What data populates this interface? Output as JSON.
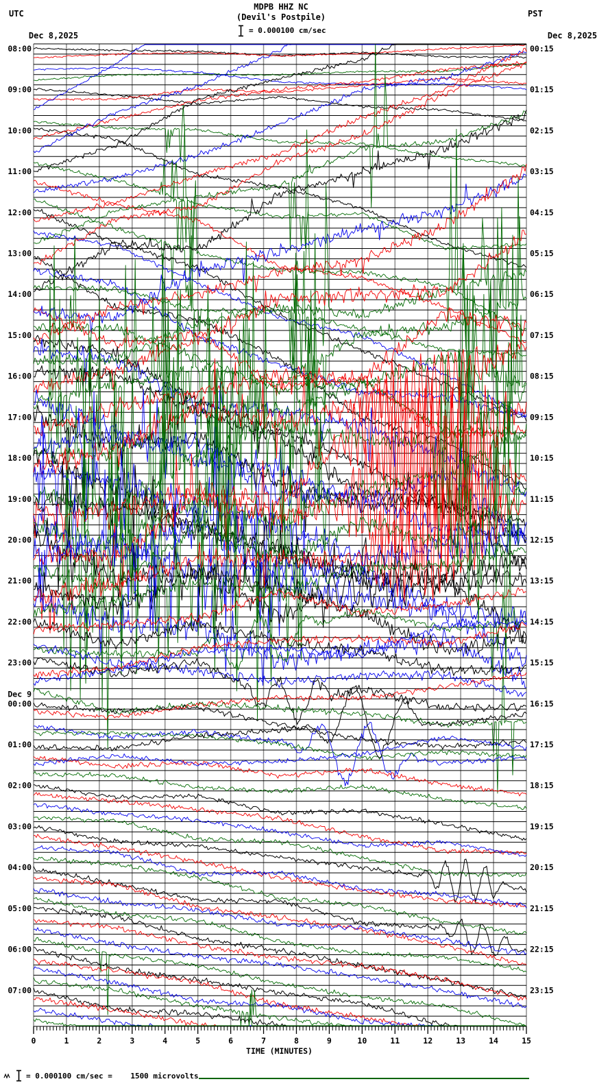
{
  "header": {
    "utc_label": "UTC",
    "utc_date": "Dec 8,2025",
    "pst_label": "PST",
    "pst_date": "Dec 8,2025",
    "station": "MDPB HHZ NC",
    "location": "(Devil's Postpile)",
    "scale_note": "= 0.000100 cm/sec"
  },
  "footer": {
    "note": "= 0.000100 cm/sec =    1500 microvolts"
  },
  "chart_data": {
    "type": "line",
    "subtype": "helicorder-seismogram",
    "title": "MDPB HHZ NC (Devil's Postpile)",
    "xlabel": "TIME (MINUTES)",
    "x_ticks": [
      "0",
      "1",
      "2",
      "3",
      "4",
      "5",
      "6",
      "7",
      "8",
      "9",
      "10",
      "11",
      "12",
      "13",
      "14",
      "15"
    ],
    "x_range_minutes": [
      0,
      15
    ],
    "minutes_per_row": 15,
    "rows_total": 96,
    "rows_per_hour": 4,
    "utc_hour_labels": [
      {
        "row": 0,
        "text": "08:00"
      },
      {
        "row": 4,
        "text": "09:00"
      },
      {
        "row": 8,
        "text": "10:00"
      },
      {
        "row": 12,
        "text": "11:00"
      },
      {
        "row": 16,
        "text": "12:00"
      },
      {
        "row": 20,
        "text": "13:00"
      },
      {
        "row": 24,
        "text": "14:00"
      },
      {
        "row": 28,
        "text": "15:00"
      },
      {
        "row": 32,
        "text": "16:00"
      },
      {
        "row": 36,
        "text": "17:00"
      },
      {
        "row": 40,
        "text": "18:00"
      },
      {
        "row": 44,
        "text": "19:00"
      },
      {
        "row": 48,
        "text": "20:00"
      },
      {
        "row": 52,
        "text": "21:00"
      },
      {
        "row": 56,
        "text": "22:00"
      },
      {
        "row": 60,
        "text": "23:00"
      },
      {
        "row": 64,
        "text": "00:00",
        "date": "Dec 9"
      },
      {
        "row": 68,
        "text": "01:00"
      },
      {
        "row": 72,
        "text": "02:00"
      },
      {
        "row": 76,
        "text": "03:00"
      },
      {
        "row": 80,
        "text": "04:00"
      },
      {
        "row": 84,
        "text": "05:00"
      },
      {
        "row": 88,
        "text": "06:00"
      },
      {
        "row": 92,
        "text": "07:00"
      }
    ],
    "pst_hour_labels": [
      {
        "row": 0,
        "text": "00:15"
      },
      {
        "row": 4,
        "text": "01:15"
      },
      {
        "row": 8,
        "text": "02:15"
      },
      {
        "row": 12,
        "text": "03:15"
      },
      {
        "row": 16,
        "text": "04:15"
      },
      {
        "row": 20,
        "text": "05:15"
      },
      {
        "row": 24,
        "text": "06:15"
      },
      {
        "row": 28,
        "text": "07:15"
      },
      {
        "row": 32,
        "text": "08:15"
      },
      {
        "row": 36,
        "text": "09:15"
      },
      {
        "row": 40,
        "text": "10:15"
      },
      {
        "row": 44,
        "text": "11:15"
      },
      {
        "row": 48,
        "text": "12:15"
      },
      {
        "row": 52,
        "text": "13:15"
      },
      {
        "row": 56,
        "text": "14:15"
      },
      {
        "row": 60,
        "text": "15:15"
      },
      {
        "row": 64,
        "text": "16:15"
      },
      {
        "row": 68,
        "text": "17:15"
      },
      {
        "row": 72,
        "text": "18:15"
      },
      {
        "row": 76,
        "text": "19:15"
      },
      {
        "row": 80,
        "text": "20:15"
      },
      {
        "row": 84,
        "text": "21:15"
      },
      {
        "row": 88,
        "text": "22:15"
      },
      {
        "row": 92,
        "text": "23:15"
      }
    ],
    "color_cycle": [
      "black",
      "red",
      "blue",
      "green"
    ],
    "palette": {
      "black": "#000000",
      "red": "#f40000",
      "blue": "#0000ee",
      "green": "#006900",
      "grid_v": "#8e8e8e",
      "grid_h": "#000000",
      "underline": "#006400"
    },
    "rows_key": "[noise_amp_px, drift_px, wander_px, spike_prob, spike_amp_px, spike_zones, burst[x0,x1,amp,freq]]",
    "rows": [
      [
        1,
        10,
        6,
        0,
        0,
        null,
        null
      ],
      [
        1,
        -15,
        6,
        0,
        0,
        null,
        null
      ],
      [
        1,
        30,
        8,
        0,
        0,
        null,
        null
      ],
      [
        1,
        -20,
        8,
        0,
        0,
        null,
        null
      ],
      [
        1.2,
        40,
        10,
        0,
        0,
        null,
        null
      ],
      [
        1.2,
        -30,
        8,
        0,
        0,
        null,
        null
      ],
      [
        1.5,
        -420,
        20,
        0,
        0,
        null,
        null
      ],
      [
        1.5,
        60,
        10,
        0.3,
        110,
        [
          [
            0.255,
            0.305
          ]
        ],
        null
      ],
      [
        2,
        190,
        20,
        0,
        0,
        null,
        null
      ],
      [
        2,
        -130,
        18,
        0,
        0,
        null,
        null
      ],
      [
        2.5,
        -320,
        24,
        0,
        0,
        null,
        null
      ],
      [
        2,
        140,
        18,
        0.3,
        150,
        [
          [
            0.255,
            0.31
          ],
          [
            0.52,
            0.56
          ]
        ],
        null
      ],
      [
        2.5,
        -260,
        22,
        0,
        0,
        null,
        null
      ],
      [
        2.5,
        230,
        20,
        0,
        0,
        null,
        null
      ],
      [
        3,
        -200,
        22,
        0,
        0,
        null,
        null
      ],
      [
        2.5,
        170,
        20,
        0.32,
        170,
        [
          [
            0.25,
            0.35
          ],
          [
            0.52,
            0.56
          ]
        ],
        null
      ],
      [
        3,
        300,
        26,
        0,
        0,
        null,
        null
      ],
      [
        3,
        -240,
        24,
        0,
        0,
        null,
        null
      ],
      [
        3,
        260,
        26,
        0,
        0,
        null,
        null
      ],
      [
        3,
        -180,
        22,
        0.3,
        200,
        [
          [
            0.27,
            0.33
          ],
          [
            0.52,
            0.57
          ],
          [
            0.68,
            0.72
          ]
        ],
        null
      ],
      [
        3.5,
        340,
        30,
        0,
        0,
        null,
        null
      ],
      [
        3.5,
        -280,
        26,
        0,
        0,
        null,
        null
      ],
      [
        4,
        220,
        28,
        0,
        0,
        null,
        null
      ],
      [
        3,
        120,
        24,
        0.3,
        220,
        [
          [
            0.3,
            0.36
          ],
          [
            0.52,
            0.57
          ],
          [
            0.86,
            0.9
          ]
        ],
        null
      ],
      [
        5,
        -260,
        34,
        0.02,
        30,
        null,
        null
      ],
      [
        5,
        210,
        32,
        0.02,
        30,
        null,
        null
      ],
      [
        7,
        -190,
        36,
        0.03,
        40,
        null,
        null
      ],
      [
        5,
        160,
        30,
        0.22,
        240,
        [
          [
            0.05,
            0.12
          ],
          [
            0.52,
            0.58
          ],
          [
            0.9,
            0.99
          ]
        ],
        null
      ],
      [
        6,
        280,
        40,
        0.03,
        40,
        null,
        null
      ],
      [
        6,
        -230,
        36,
        0.03,
        40,
        null,
        null
      ],
      [
        8,
        190,
        40,
        0.05,
        60,
        null,
        null
      ],
      [
        6,
        -150,
        34,
        0.25,
        260,
        [
          [
            0.06,
            0.14
          ],
          [
            0.5,
            0.6
          ],
          [
            0.84,
            0.99
          ]
        ],
        null
      ],
      [
        8,
        240,
        44,
        0.05,
        50,
        [
          [
            0,
            0.6
          ]
        ],
        null
      ],
      [
        8,
        -210,
        40,
        0.05,
        50,
        [
          [
            0,
            0.65
          ]
        ],
        null
      ],
      [
        10,
        170,
        44,
        0.08,
        80,
        [
          [
            0,
            0.6
          ]
        ],
        null
      ],
      [
        7,
        -130,
        38,
        0.25,
        280,
        [
          [
            0.04,
            0.5
          ],
          [
            0.55,
            0.62
          ],
          [
            0.88,
            0.99
          ]
        ],
        null
      ],
      [
        9,
        200,
        48,
        0.06,
        60,
        [
          [
            0,
            0.62
          ]
        ],
        null
      ],
      [
        9,
        -170,
        44,
        0.06,
        60,
        [
          [
            0,
            0.62
          ]
        ],
        null
      ],
      [
        11,
        150,
        46,
        0.1,
        100,
        [
          [
            0,
            0.6
          ]
        ],
        null
      ],
      [
        8,
        -120,
        40,
        0.28,
        300,
        [
          [
            0.03,
            0.55
          ],
          [
            0.86,
            0.99
          ]
        ],
        null
      ],
      [
        12,
        180,
        55,
        0.08,
        80,
        [
          [
            0,
            0.62
          ]
        ],
        null
      ],
      [
        12,
        -150,
        50,
        0.08,
        80,
        [
          [
            0,
            0.62
          ]
        ],
        [
          0.62,
          0.95,
          60,
          70
        ]
      ],
      [
        14,
        140,
        55,
        0.12,
        150,
        [
          [
            0,
            0.58
          ]
        ],
        null
      ],
      [
        10,
        -110,
        45,
        0.22,
        300,
        [
          [
            0.03,
            0.6
          ],
          [
            0.8,
            0.99
          ]
        ],
        null
      ],
      [
        12,
        150,
        60,
        0.08,
        90,
        [
          [
            0,
            0.6
          ]
        ],
        null
      ],
      [
        13,
        -120,
        50,
        0.1,
        100,
        [
          [
            0,
            0.55
          ]
        ],
        [
          0.6,
          0.99,
          130,
          75
        ]
      ],
      [
        15,
        120,
        55,
        0.14,
        160,
        [
          [
            0,
            0.55
          ]
        ],
        null
      ],
      [
        10,
        -100,
        45,
        0.2,
        300,
        [
          [
            0.05,
            0.62
          ],
          [
            0.82,
            0.99
          ]
        ],
        null
      ],
      [
        11,
        130,
        60,
        0.07,
        80,
        [
          [
            0,
            0.6
          ]
        ],
        [
          0.55,
          0.85,
          50,
          30
        ]
      ],
      [
        12,
        -110,
        50,
        0.1,
        90,
        [
          [
            0,
            0.5
          ]
        ],
        [
          0.6,
          0.99,
          150,
          75
        ]
      ],
      [
        13,
        100,
        55,
        0.12,
        140,
        [
          [
            0,
            0.5
          ]
        ],
        null
      ],
      [
        9,
        -90,
        45,
        0.18,
        280,
        [
          [
            0.06,
            0.6
          ],
          [
            0.85,
            0.99
          ]
        ],
        null
      ],
      [
        9,
        110,
        55,
        0.05,
        60,
        [
          [
            0,
            0.55
          ]
        ],
        null
      ],
      [
        10,
        -90,
        45,
        0.08,
        80,
        [
          [
            0,
            0.5
          ]
        ],
        [
          0.65,
          0.99,
          110,
          70
        ]
      ],
      [
        11,
        90,
        50,
        0.1,
        120,
        [
          [
            0,
            0.5
          ]
        ],
        null
      ],
      [
        8,
        -80,
        40,
        0.15,
        240,
        [
          [
            0.08,
            0.55
          ],
          [
            0.88,
            0.99
          ]
        ],
        null
      ],
      [
        6,
        90,
        30,
        0.02,
        30,
        null,
        null
      ],
      [
        5,
        -70,
        26,
        0,
        0,
        null,
        null
      ],
      [
        5,
        80,
        26,
        0,
        0,
        null,
        null
      ],
      [
        4,
        -60,
        24,
        0.25,
        200,
        [
          [
            0.93,
            0.99
          ]
        ],
        [
          0.32,
          0.6,
          45,
          10
        ]
      ],
      [
        5,
        70,
        28,
        0,
        0,
        null,
        [
          0.42,
          0.62,
          40,
          12
        ]
      ],
      [
        4,
        -55,
        22,
        0,
        0,
        null,
        null
      ],
      [
        4,
        -90,
        24,
        0,
        0,
        null,
        null
      ],
      [
        3.5,
        55,
        20,
        0.22,
        180,
        [
          [
            0.93,
            0.99
          ]
        ],
        null
      ],
      [
        3,
        60,
        16,
        0,
        0,
        null,
        null
      ],
      [
        3,
        -45,
        16,
        0,
        0,
        null,
        null
      ],
      [
        3,
        50,
        16,
        0,
        0,
        null,
        [
          0.52,
          0.78,
          55,
          10
        ]
      ],
      [
        2.5,
        35,
        14,
        0,
        0,
        null,
        null
      ],
      [
        3,
        -40,
        16,
        0,
        0,
        null,
        [
          0.55,
          0.8,
          60,
          9
        ]
      ],
      [
        3,
        45,
        14,
        0,
        0,
        null,
        null
      ],
      [
        2.5,
        -35,
        14,
        0,
        0,
        null,
        null
      ],
      [
        2.5,
        40,
        12,
        0,
        0,
        null,
        null
      ],
      [
        2.5,
        70,
        10,
        0,
        0,
        null,
        null
      ],
      [
        2.5,
        85,
        10,
        0,
        0,
        null,
        null
      ],
      [
        2.5,
        75,
        10,
        0,
        0,
        null,
        null
      ],
      [
        2.5,
        90,
        10,
        0,
        0,
        null,
        null
      ],
      [
        2.5,
        100,
        10,
        0,
        0,
        null,
        [
          0.78,
          0.97,
          35,
          25
        ]
      ],
      [
        2.8,
        110,
        10,
        0,
        0,
        null,
        null
      ],
      [
        2.8,
        95,
        10,
        0,
        0,
        null,
        null
      ],
      [
        2.5,
        105,
        10,
        0,
        0,
        null,
        null
      ],
      [
        2.8,
        115,
        10,
        0,
        0,
        null,
        [
          0.82,
          0.99,
          30,
          22
        ]
      ],
      [
        3,
        120,
        10,
        0,
        0,
        null,
        null
      ],
      [
        3,
        100,
        10,
        0,
        0,
        null,
        null
      ],
      [
        2.5,
        110,
        10,
        0,
        0,
        null,
        null
      ],
      [
        3,
        125,
        12,
        0,
        0,
        null,
        null
      ],
      [
        3,
        115,
        10,
        0,
        0,
        null,
        null
      ],
      [
        3,
        105,
        10,
        0,
        0,
        null,
        null
      ],
      [
        2.5,
        120,
        10,
        0.5,
        200,
        [
          [
            0.135,
            0.152
          ]
        ],
        null
      ],
      [
        3,
        130,
        12,
        0,
        0,
        null,
        null
      ],
      [
        3,
        120,
        10,
        0,
        0,
        null,
        null
      ],
      [
        3,
        110,
        10,
        0,
        0,
        null,
        null
      ],
      [
        2.8,
        115,
        10,
        0.25,
        150,
        [
          [
            0.41,
            0.45
          ],
          [
            0.465,
            0.48
          ]
        ],
        null
      ],
      [
        3,
        125,
        12,
        0,
        0,
        null,
        null
      ],
      [
        3,
        115,
        10,
        0,
        0,
        null,
        null
      ],
      [
        3,
        105,
        10,
        0,
        0,
        null,
        null
      ],
      [
        2.8,
        110,
        10,
        0.2,
        100,
        [
          [
            0.44,
            0.47
          ]
        ],
        null
      ]
    ]
  }
}
